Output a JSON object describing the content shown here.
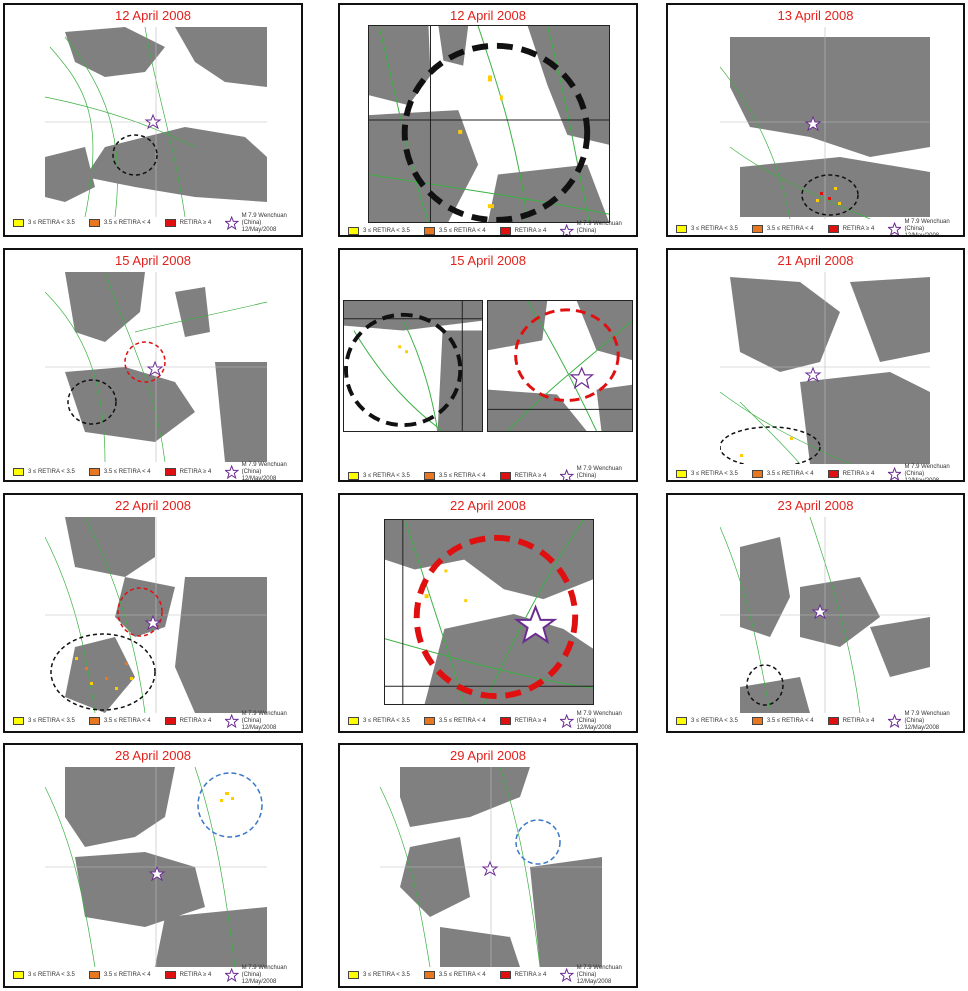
{
  "panels": [
    {
      "title": "12 April 2008"
    },
    {
      "title": "12 April 2008"
    },
    {
      "title": "13 April 2008"
    },
    {
      "title": "15 April 2008"
    },
    {
      "title": "15 April 2008"
    },
    {
      "title": "21 April 2008"
    },
    {
      "title": "22 April 2008"
    },
    {
      "title": "22 April 2008"
    },
    {
      "title": "23 April 2008"
    },
    {
      "title": "28 April 2008"
    },
    {
      "title": "29 April 2008"
    }
  ],
  "legend": {
    "item1": "3 ≤ RETIRA < 3.5",
    "item2": "3.5 ≤ RETIRA < 4",
    "item3": "RETIRA ≥ 4",
    "star_line1": "M 7.9 Wenchuan",
    "star_line2": "(China) 12/May/2008"
  },
  "colors": {
    "yellow": "#ffff00",
    "orange": "#e87722",
    "red": "#e01010",
    "cloud": "#808080",
    "star": "#6a2c91",
    "faults": "#3cb043",
    "title": "#e2211c"
  }
}
